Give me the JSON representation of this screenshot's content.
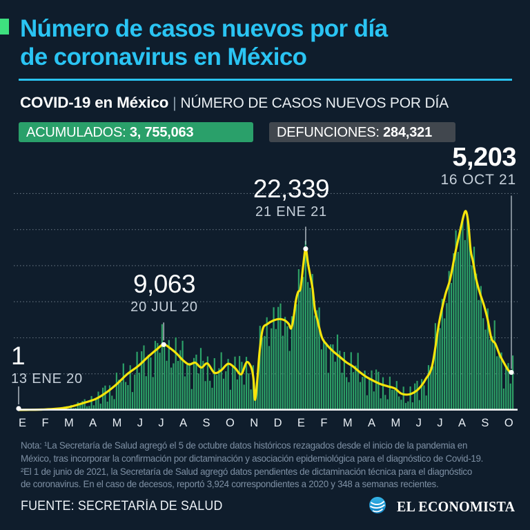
{
  "header": {
    "title_line1": "Número de casos nuevos por día",
    "title_line2": "de coronavirus en México",
    "title_color": "#2AC4F3",
    "accent_color": "#3EE07F"
  },
  "subheader": {
    "bold": "COVID-19 en México",
    "separator": "|",
    "rest": "NÚMERO DE CASOS NUEVOS POR DÍA"
  },
  "badges": {
    "accumulated": {
      "label": "ACUMULADOS: ",
      "value": "3, 755,063",
      "bg": "#2AA06A"
    },
    "deaths": {
      "label": "DEFUNCIONES: ",
      "value": "284,321",
      "bg": "#41474E"
    }
  },
  "chart_data": {
    "type": "bar",
    "title": "COVID-19 en México | Número de casos nuevos por día",
    "x_axis_months": [
      "E",
      "F",
      "M",
      "A",
      "M",
      "J",
      "J",
      "A",
      "S",
      "O",
      "N",
      "D",
      "E",
      "F",
      "M",
      "A",
      "M",
      "J",
      "J",
      "A",
      "S",
      "O"
    ],
    "x_span_days": 642,
    "ylim": [
      0,
      30000
    ],
    "y_gridlines": [
      5000,
      10000,
      15000,
      20000,
      25000,
      30000
    ],
    "grid_on": true,
    "series_note": "green bars = daily new cases, yellow line = smoothed average",
    "avg_line_points": [
      [
        0,
        1
      ],
      [
        14,
        15
      ],
      [
        30,
        50
      ],
      [
        48,
        150
      ],
      [
        66,
        400
      ],
      [
        84,
        950
      ],
      [
        100,
        1500
      ],
      [
        114,
        2400
      ],
      [
        128,
        3600
      ],
      [
        142,
        5000
      ],
      [
        156,
        6100
      ],
      [
        168,
        7300
      ],
      [
        180,
        8400
      ],
      [
        189,
        9063
      ],
      [
        198,
        8500
      ],
      [
        206,
        7800
      ],
      [
        214,
        6900
      ],
      [
        222,
        6300
      ],
      [
        230,
        6550
      ],
      [
        238,
        5870
      ],
      [
        246,
        6440
      ],
      [
        255,
        5150
      ],
      [
        264,
        5500
      ],
      [
        273,
        6400
      ],
      [
        282,
        5800
      ],
      [
        290,
        4950
      ],
      [
        297,
        6600
      ],
      [
        303,
        5900
      ],
      [
        306,
        4300
      ],
      [
        308,
        1400
      ],
      [
        311,
        4200
      ],
      [
        314,
        8100
      ],
      [
        318,
        11200
      ],
      [
        324,
        11900
      ],
      [
        332,
        12400
      ],
      [
        340,
        12600
      ],
      [
        347,
        12400
      ],
      [
        352,
        11900
      ],
      [
        355,
        11300
      ],
      [
        358,
        12600
      ],
      [
        361,
        15000
      ],
      [
        364,
        16300
      ],
      [
        367,
        16700
      ],
      [
        369,
        18300
      ],
      [
        371,
        20200
      ],
      [
        374,
        22339
      ],
      [
        377,
        20300
      ],
      [
        380,
        18600
      ],
      [
        383,
        16800
      ],
      [
        386,
        13900
      ],
      [
        389,
        12600
      ],
      [
        395,
        10100
      ],
      [
        401,
        9100
      ],
      [
        409,
        8200
      ],
      [
        418,
        7400
      ],
      [
        427,
        6600
      ],
      [
        436,
        6000
      ],
      [
        445,
        5200
      ],
      [
        454,
        4520
      ],
      [
        463,
        4000
      ],
      [
        472,
        3560
      ],
      [
        481,
        3270
      ],
      [
        490,
        2980
      ],
      [
        498,
        2300
      ],
      [
        506,
        2120
      ],
      [
        514,
        2350
      ],
      [
        522,
        3000
      ],
      [
        530,
        4200
      ],
      [
        539,
        6200
      ],
      [
        548,
        12200
      ],
      [
        556,
        16000
      ],
      [
        562,
        18000
      ],
      [
        569,
        21800
      ],
      [
        575,
        24700
      ],
      [
        580,
        27000
      ],
      [
        583,
        27500
      ],
      [
        586,
        25800
      ],
      [
        589,
        22100
      ],
      [
        592,
        20600
      ],
      [
        596,
        18200
      ],
      [
        601,
        16200
      ],
      [
        606,
        14600
      ],
      [
        611,
        12600
      ],
      [
        616,
        9900
      ],
      [
        621,
        9200
      ],
      [
        627,
        7600
      ],
      [
        633,
        6400
      ],
      [
        638,
        5500
      ],
      [
        642,
        5203
      ]
    ],
    "bar_max": 28800,
    "annotations": [
      {
        "value_label": "1",
        "date_label": "13 ENE 20",
        "day": 0,
        "value": 1,
        "style": "normal"
      },
      {
        "value_label": "9,063",
        "date_label": "20 JUL 20",
        "day": 189,
        "value": 9063,
        "style": "normal"
      },
      {
        "value_label": "22,339",
        "date_label": "21 ENE 21",
        "day": 374,
        "value": 22339,
        "style": "normal"
      },
      {
        "value_label": "5,203",
        "date_label": "16 OCT 21",
        "day": 642,
        "value": 5203,
        "style": "latest"
      }
    ],
    "colors": {
      "bars": "#2BA36A",
      "bars_alt": "#2F9E64",
      "avg_line": "#F6E40B",
      "baseline": "#FDFEFE",
      "grid": "rgba(200,214,224,0.5)",
      "leader": "#C9D2DA",
      "dot": "#FFFFFF"
    }
  },
  "note": {
    "lines": [
      "Nota: ¹La Secretaría de Salud agregó el 5 de octubre datos históricos rezagados desde el inicio de la pandemia en",
      "México, tras incorporar la confirmación por dictaminación y asociación epidemiológica para el diagnóstico de Covid-19.",
      "²El 1 de junio de 2021, la Secretaría de Salud agregó datos pendientes de dictaminación técnica para el diagnóstico",
      "de coronavirus. En el caso de decesos, reportó 3,924 correspondientes a 2020 y 348 a semanas recientes."
    ]
  },
  "footer": {
    "source": "FUENTE: SECRETARÍA DE SALUD",
    "brand": "EL ECONOMISTA"
  }
}
